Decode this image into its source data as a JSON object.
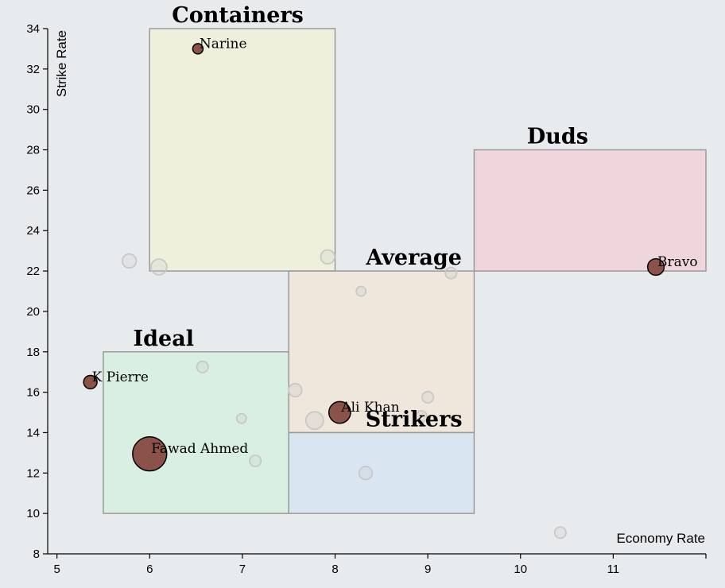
{
  "chart_data": {
    "type": "scatter",
    "xlabel": "Economy Rate",
    "ylabel": "Strike Rate",
    "xlim": [
      4.9,
      12
    ],
    "ylim": [
      8,
      34
    ],
    "x_ticks": [
      5,
      6,
      7,
      8,
      9,
      10,
      11
    ],
    "y_ticks": [
      8,
      10,
      12,
      14,
      16,
      18,
      20,
      22,
      24,
      26,
      28,
      30,
      32,
      34
    ],
    "colors": {
      "highlight": "#8b5249",
      "faded": "#c8c8c8"
    },
    "regions": [
      {
        "name": "Containers",
        "x0": 6,
        "x1": 8,
        "y0": 22,
        "y1": 34,
        "color": "#eef0dc"
      },
      {
        "name": "Duds",
        "x0": 9.5,
        "x1": 12,
        "y0": 22,
        "y1": 28,
        "color": "#efd6dc"
      },
      {
        "name": "Average",
        "x0": 7.5,
        "x1": 9.5,
        "y0": 14,
        "y1": 22,
        "color": "#efe6dc"
      },
      {
        "name": "Ideal",
        "x0": 5.5,
        "x1": 7.5,
        "y0": 10,
        "y1": 18,
        "color": "#d9efe1"
      },
      {
        "name": "Strikers",
        "x0": 7.5,
        "x1": 9.5,
        "y0": 10,
        "y1": 14,
        "color": "#d9e6f2"
      }
    ],
    "highlighted": [
      {
        "name": "Narine",
        "x": 6.52,
        "y": 33.0,
        "size": 1
      },
      {
        "name": "Bravo",
        "x": 11.46,
        "y": 22.2,
        "size": 1.6
      },
      {
        "name": "K Pierre",
        "x": 5.36,
        "y": 16.5,
        "size": 1.3
      },
      {
        "name": "Ali Khan",
        "x": 8.05,
        "y": 15.0,
        "size": 2.1
      },
      {
        "name": "Fawad Ahmed",
        "x": 6.0,
        "y": 12.95,
        "size": 3.3
      }
    ],
    "others": [
      {
        "x": 5.78,
        "y": 22.5,
        "size": 1.6
      },
      {
        "x": 6.1,
        "y": 22.2,
        "size": 1.8
      },
      {
        "x": 7.92,
        "y": 22.7,
        "size": 1.6
      },
      {
        "x": 9.25,
        "y": 21.9,
        "size": 1.3
      },
      {
        "x": 8.28,
        "y": 21.0,
        "size": 1.1
      },
      {
        "x": 6.57,
        "y": 17.25,
        "size": 1.3
      },
      {
        "x": 7.57,
        "y": 16.1,
        "size": 1.5
      },
      {
        "x": 9.0,
        "y": 15.75,
        "size": 1.3
      },
      {
        "x": 6.99,
        "y": 14.7,
        "size": 1.1
      },
      {
        "x": 7.78,
        "y": 14.6,
        "size": 2.0
      },
      {
        "x": 8.93,
        "y": 14.8,
        "size": 1.3
      },
      {
        "x": 7.14,
        "y": 12.6,
        "size": 1.3
      },
      {
        "x": 8.33,
        "y": 12.0,
        "size": 1.5
      },
      {
        "x": 10.43,
        "y": 9.05,
        "size": 1.3
      }
    ]
  }
}
